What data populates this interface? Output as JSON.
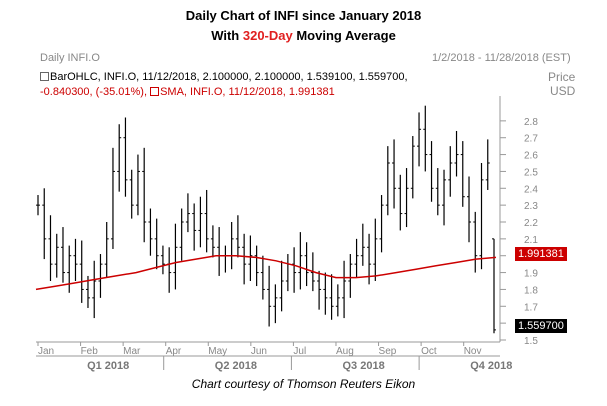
{
  "title_line1": "Daily Chart of INFI since January 2018",
  "title_line2_pre": "With ",
  "title_line2_accent": "320-Day",
  "title_line2_post": " Moving Average",
  "accent_color": "#e02020",
  "header": {
    "instrument_label": "Daily INFI.O",
    "date_range": "1/2/2018 - 11/28/2018 (EST)",
    "price_axis_title": "Price",
    "price_axis_unit": "USD"
  },
  "ohlc_line": {
    "series_label": "BarOHLC, INFI.O, 11/12/2018, 2.100000, 2.100000, 1.539100, 1.559700,",
    "change_text": "-0.840300, (-35.01%),",
    "sma_label": "SMA, INFI.O, 11/12/2018, 1.991381"
  },
  "last_price_tag": "1.559700",
  "sma_tag": "1.991381",
  "caption": "Chart courtesy of Thomson Reuters Eikon",
  "chart_data": {
    "type": "ohlc",
    "ylim": [
      1.5,
      2.9
    ],
    "y_ticks": [
      "2.8",
      "2.7",
      "2.6",
      "2.5",
      "2.4",
      "2.3",
      "2.2",
      "2.1",
      "2.0",
      "1.9",
      "1.8",
      "1.7",
      "1.6",
      "1.5"
    ],
    "x_month_labels": [
      "Jan",
      "Feb",
      "Mar",
      "Apr",
      "May",
      "Jun",
      "Jul",
      "Aug",
      "Sep",
      "Oct",
      "Nov"
    ],
    "x_quarter_labels": [
      "Q1 2018",
      "Q2 2018",
      "Q3 2018",
      "Q4 2018"
    ],
    "grid": false,
    "colors": {
      "bars": "#000000",
      "sma": "#cc0000"
    },
    "series": [
      {
        "name": "BarOHLC, INFI.O",
        "close": [
          2.3,
          2.1,
          1.95,
          2.05,
          1.9,
          2.0,
          1.95,
          1.8,
          1.75,
          1.85,
          1.95,
          2.1,
          2.5,
          2.7,
          2.45,
          2.3,
          2.5,
          2.2,
          2.1,
          2.0,
          1.95,
          1.9,
          2.05,
          2.2,
          2.25,
          2.15,
          2.25,
          2.1,
          2.05,
          2.0,
          2.0,
          2.1,
          2.05,
          1.95,
          2.0,
          1.9,
          1.8,
          1.7,
          1.75,
          1.85,
          1.95,
          1.9,
          2.0,
          1.9,
          1.85,
          1.8,
          1.75,
          1.7,
          1.75,
          1.85,
          1.95,
          2.0,
          2.05,
          1.95,
          2.1,
          2.3,
          2.55,
          2.4,
          2.25,
          2.4,
          2.65,
          2.75,
          2.6,
          2.4,
          2.3,
          2.45,
          2.55,
          2.6,
          2.35,
          2.2,
          2.0,
          2.45,
          2.55,
          1.56
        ],
        "sample_dates": [
          "1/2/2018",
          "11/12/2018"
        ]
      },
      {
        "name": "SMA, INFI.O",
        "values": [
          1.8,
          1.82,
          1.84,
          1.86,
          1.88,
          1.9,
          1.93,
          1.96,
          1.98,
          2.0,
          2.0,
          1.99,
          1.97,
          1.94,
          1.9,
          1.87,
          1.87,
          1.88,
          1.9,
          1.92,
          1.94,
          1.96,
          1.98,
          1.99
        ]
      }
    ]
  }
}
